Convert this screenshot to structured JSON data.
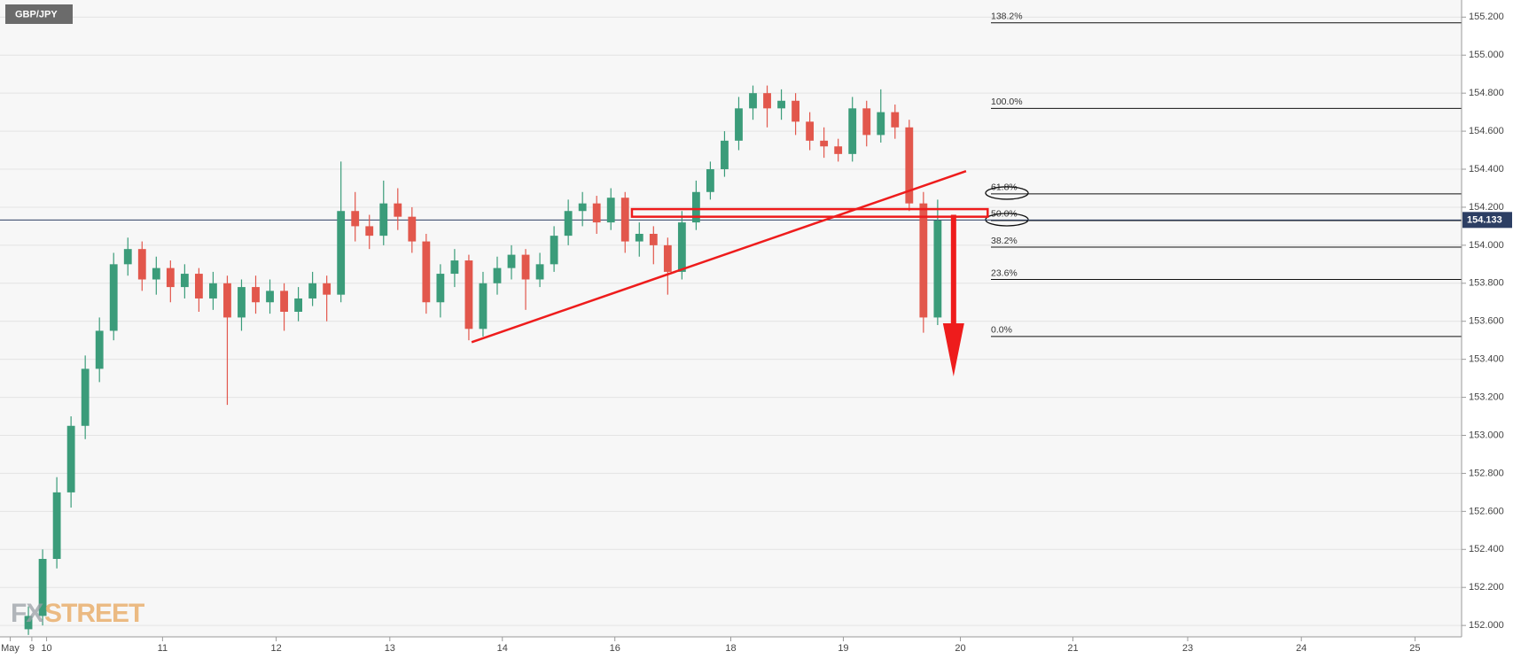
{
  "chart_data": {
    "type": "candlestick",
    "title": "GBP/JPY",
    "watermark": {
      "left": "FX",
      "right": "STREET"
    },
    "up_color": "#3b9c7a",
    "down_color": "#e2574c",
    "x": [
      0.25,
      0.375,
      0.5,
      0.625,
      0.75,
      0.875,
      1.0,
      1.125,
      1.25,
      1.375,
      1.5,
      1.625,
      1.75,
      1.875,
      2.0,
      2.125,
      2.25,
      2.375,
      2.5,
      2.625,
      2.75,
      2.875,
      3.0,
      3.125,
      3.25,
      3.375,
      3.5,
      3.625,
      3.75,
      3.875,
      4.0,
      4.125,
      4.25,
      4.375,
      4.5,
      4.625,
      4.75,
      4.875,
      5.0,
      5.125,
      5.25,
      5.375,
      5.5,
      5.625,
      5.75,
      5.875,
      6.0,
      6.125,
      6.25,
      6.375,
      6.5,
      6.625,
      6.75,
      6.875,
      7.0,
      7.125,
      7.25,
      7.375,
      7.5,
      7.625,
      7.75,
      7.875,
      8.0,
      8.125,
      8.25
    ],
    "open": [
      151.98,
      152.05,
      152.35,
      152.7,
      153.05,
      153.35,
      153.55,
      153.9,
      153.98,
      153.82,
      153.88,
      153.78,
      153.85,
      153.72,
      153.8,
      153.62,
      153.78,
      153.7,
      153.76,
      153.65,
      153.72,
      153.8,
      153.74,
      154.18,
      154.1,
      154.05,
      154.22,
      154.15,
      154.02,
      153.7,
      153.85,
      153.92,
      153.56,
      153.8,
      153.88,
      153.95,
      153.82,
      153.9,
      154.05,
      154.18,
      154.22,
      154.12,
      154.25,
      154.02,
      154.06,
      154.0,
      153.86,
      154.12,
      154.28,
      154.4,
      154.55,
      154.72,
      154.8,
      154.72,
      154.76,
      154.65,
      154.55,
      154.52,
      154.48,
      154.72,
      154.58,
      154.7,
      154.62,
      154.22,
      153.62
    ],
    "high": [
      152.1,
      152.4,
      152.78,
      153.1,
      153.42,
      153.62,
      153.96,
      154.04,
      154.02,
      153.94,
      153.92,
      153.9,
      153.88,
      153.86,
      153.84,
      153.82,
      153.84,
      153.82,
      153.8,
      153.78,
      153.86,
      153.84,
      154.44,
      154.28,
      154.16,
      154.34,
      154.3,
      154.2,
      154.06,
      153.9,
      153.98,
      153.95,
      153.86,
      153.94,
      154.0,
      153.98,
      153.96,
      154.1,
      154.24,
      154.28,
      154.26,
      154.3,
      154.28,
      154.12,
      154.1,
      154.04,
      154.18,
      154.34,
      154.44,
      154.6,
      154.78,
      154.84,
      154.84,
      154.82,
      154.8,
      154.7,
      154.62,
      154.56,
      154.78,
      154.76,
      154.82,
      154.74,
      154.66,
      154.28,
      154.24
    ],
    "low": [
      151.95,
      152.0,
      152.3,
      152.62,
      152.98,
      153.28,
      153.5,
      153.84,
      153.76,
      153.74,
      153.7,
      153.72,
      153.65,
      153.66,
      153.16,
      153.55,
      153.64,
      153.64,
      153.55,
      153.6,
      153.68,
      153.6,
      153.7,
      154.02,
      153.98,
      154.0,
      154.08,
      153.96,
      153.64,
      153.62,
      153.78,
      153.5,
      153.52,
      153.74,
      153.82,
      153.66,
      153.78,
      153.86,
      154.0,
      154.1,
      154.06,
      154.08,
      153.96,
      153.94,
      153.9,
      153.74,
      153.82,
      154.08,
      154.24,
      154.36,
      154.5,
      154.66,
      154.62,
      154.66,
      154.58,
      154.5,
      154.46,
      154.44,
      154.44,
      154.52,
      154.54,
      154.56,
      154.18,
      153.54,
      153.58
    ],
    "close": [
      152.05,
      152.35,
      152.7,
      153.05,
      153.35,
      153.55,
      153.9,
      153.98,
      153.82,
      153.88,
      153.78,
      153.85,
      153.72,
      153.8,
      153.62,
      153.78,
      153.7,
      153.76,
      153.65,
      153.72,
      153.8,
      153.74,
      154.18,
      154.1,
      154.05,
      154.22,
      154.15,
      154.02,
      153.7,
      153.85,
      153.92,
      153.56,
      153.8,
      153.88,
      153.95,
      153.82,
      153.9,
      154.05,
      154.18,
      154.22,
      154.12,
      154.25,
      154.02,
      154.06,
      154.0,
      153.86,
      154.12,
      154.28,
      154.4,
      154.55,
      154.72,
      154.8,
      154.72,
      154.76,
      154.65,
      154.55,
      154.52,
      154.48,
      154.72,
      154.58,
      154.7,
      154.62,
      154.22,
      153.62,
      154.13
    ],
    "xlim": [
      0,
      12.86
    ],
    "xticks": [
      {
        "value": 0.09,
        "label": "May"
      },
      {
        "value": 0.28,
        "label": "9"
      },
      {
        "value": 0.41,
        "label": "10"
      },
      {
        "value": 1.43,
        "label": "11"
      },
      {
        "value": 2.43,
        "label": "12"
      },
      {
        "value": 3.43,
        "label": "13"
      },
      {
        "value": 4.42,
        "label": "14"
      },
      {
        "value": 5.41,
        "label": "16"
      },
      {
        "value": 6.43,
        "label": "18"
      },
      {
        "value": 7.42,
        "label": "19"
      },
      {
        "value": 8.45,
        "label": "20"
      },
      {
        "value": 9.44,
        "label": "21"
      },
      {
        "value": 10.45,
        "label": "23"
      },
      {
        "value": 11.45,
        "label": "24"
      },
      {
        "value": 12.45,
        "label": "25"
      }
    ],
    "ylim": [
      151.94,
      155.29
    ],
    "yticks": [
      {
        "value": 152.0,
        "label": "152.000"
      },
      {
        "value": 152.2,
        "label": "152.200"
      },
      {
        "value": 152.4,
        "label": "152.400"
      },
      {
        "value": 152.6,
        "label": "152.600"
      },
      {
        "value": 152.8,
        "label": "152.800"
      },
      {
        "value": 153.0,
        "label": "153.000"
      },
      {
        "value": 153.2,
        "label": "153.200"
      },
      {
        "value": 153.4,
        "label": "153.400"
      },
      {
        "value": 153.6,
        "label": "153.600"
      },
      {
        "value": 153.8,
        "label": "153.800"
      },
      {
        "value": 154.0,
        "label": "154.000"
      },
      {
        "value": 154.2,
        "label": "154.200"
      },
      {
        "value": 154.4,
        "label": "154.400"
      },
      {
        "value": 154.6,
        "label": "154.600"
      },
      {
        "value": 154.8,
        "label": "154.800"
      },
      {
        "value": 155.0,
        "label": "155.000"
      },
      {
        "value": 155.2,
        "label": "155.200"
      }
    ],
    "grid": true,
    "last_price": 154.133,
    "last_price_color": "#2c3e63",
    "fibonacci": [
      {
        "label": "138.2%",
        "value": 155.17,
        "circled": false
      },
      {
        "label": "100.0%",
        "value": 154.72,
        "circled": false
      },
      {
        "label": "61.8%",
        "value": 154.27,
        "circled": true
      },
      {
        "label": "50.0%",
        "value": 154.13,
        "circled": true
      },
      {
        "label": "38.2%",
        "value": 153.99,
        "circled": false
      },
      {
        "label": "23.6%",
        "value": 153.82,
        "circled": false
      },
      {
        "label": "0.0%",
        "value": 153.52,
        "circled": false
      }
    ],
    "annotations": {
      "color": "#ee1c1c",
      "trendline": {
        "x": [
          4.15,
          8.5
        ],
        "y": [
          153.49,
          154.39
        ]
      },
      "zone": {
        "x": [
          5.56,
          8.69
        ],
        "y": [
          154.15,
          154.19
        ]
      },
      "arrow": {
        "x": [
          8.39,
          8.39
        ],
        "y": [
          154.16,
          153.31
        ]
      }
    }
  }
}
